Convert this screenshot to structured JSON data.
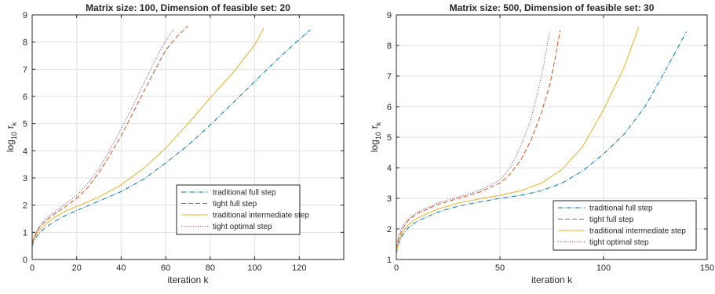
{
  "chart_data": [
    {
      "type": "line",
      "title": "Matrix size: 100, Dimension of feasible set: 20",
      "xlabel": "iteration k",
      "ylabel": {
        "base": "log",
        "sub": "10",
        "sym": "τ",
        "symsub": "k"
      },
      "xlim": [
        0,
        140
      ],
      "ylim": [
        0,
        9
      ],
      "xticks": [
        0,
        20,
        40,
        60,
        80,
        100,
        120
      ],
      "yticks": [
        0,
        1,
        2,
        3,
        4,
        5,
        6,
        7,
        8,
        9
      ],
      "grid": true,
      "legend_position": "lower-right",
      "series": [
        {
          "name": "traditional full step",
          "color": "#0072BD",
          "dash": "dashdot",
          "points": [
            [
              0,
              0.5
            ],
            [
              1,
              0.72
            ],
            [
              3,
              0.95
            ],
            [
              6,
              1.18
            ],
            [
              10,
              1.4
            ],
            [
              15,
              1.62
            ],
            [
              20,
              1.8
            ],
            [
              30,
              2.15
            ],
            [
              40,
              2.5
            ],
            [
              50,
              2.95
            ],
            [
              60,
              3.55
            ],
            [
              70,
              4.2
            ],
            [
              80,
              4.95
            ],
            [
              90,
              5.75
            ],
            [
              100,
              6.55
            ],
            [
              110,
              7.35
            ],
            [
              120,
              8.1
            ],
            [
              125,
              8.45
            ]
          ]
        },
        {
          "name": "tight full step",
          "color": "#D95319",
          "dash": "dashed",
          "points": [
            [
              0,
              0.6
            ],
            [
              1,
              0.85
            ],
            [
              3,
              1.15
            ],
            [
              6,
              1.42
            ],
            [
              10,
              1.68
            ],
            [
              15,
              1.95
            ],
            [
              20,
              2.25
            ],
            [
              25,
              2.65
            ],
            [
              30,
              3.2
            ],
            [
              35,
              3.85
            ],
            [
              40,
              4.55
            ],
            [
              45,
              5.35
            ],
            [
              50,
              6.15
            ],
            [
              55,
              6.95
            ],
            [
              60,
              7.7
            ],
            [
              65,
              8.2
            ],
            [
              70,
              8.6
            ]
          ]
        },
        {
          "name": "traditional intermediate step",
          "color": "#EDB120",
          "dash": "solid",
          "points": [
            [
              0,
              0.55
            ],
            [
              1,
              0.8
            ],
            [
              3,
              1.05
            ],
            [
              6,
              1.3
            ],
            [
              10,
              1.55
            ],
            [
              15,
              1.78
            ],
            [
              20,
              1.95
            ],
            [
              30,
              2.3
            ],
            [
              40,
              2.75
            ],
            [
              50,
              3.35
            ],
            [
              60,
              4.1
            ],
            [
              70,
              5.0
            ],
            [
              80,
              5.95
            ],
            [
              90,
              6.85
            ],
            [
              100,
              7.9
            ],
            [
              104,
              8.5
            ]
          ]
        },
        {
          "name": "tight optimal step",
          "color": "#7E2F8E",
          "dash": "dotted",
          "points": [
            [
              0,
              0.62
            ],
            [
              1,
              0.88
            ],
            [
              3,
              1.2
            ],
            [
              6,
              1.5
            ],
            [
              10,
              1.75
            ],
            [
              15,
              2.05
            ],
            [
              20,
              2.35
            ],
            [
              25,
              2.8
            ],
            [
              30,
              3.35
            ],
            [
              35,
              4.05
            ],
            [
              40,
              4.8
            ],
            [
              45,
              5.6
            ],
            [
              50,
              6.45
            ],
            [
              55,
              7.3
            ],
            [
              60,
              8.05
            ],
            [
              64,
              8.5
            ]
          ]
        }
      ]
    },
    {
      "type": "line",
      "title": "Matrix size: 500, Dimension of feasible set: 30",
      "xlabel": "iteration k",
      "ylabel": {
        "base": "log",
        "sub": "10",
        "sym": "τ",
        "symsub": "k"
      },
      "xlim": [
        0,
        150
      ],
      "ylim": [
        1,
        9
      ],
      "xticks": [
        0,
        50,
        100,
        150
      ],
      "yticks": [
        1,
        2,
        3,
        4,
        5,
        6,
        7,
        8,
        9
      ],
      "grid": true,
      "legend_position": "lower-right",
      "series": [
        {
          "name": "traditional full step",
          "color": "#0072BD",
          "dash": "dashdot",
          "points": [
            [
              0,
              1.2
            ],
            [
              1,
              1.5
            ],
            [
              3,
              1.8
            ],
            [
              6,
              2.05
            ],
            [
              10,
              2.25
            ],
            [
              20,
              2.55
            ],
            [
              30,
              2.75
            ],
            [
              40,
              2.88
            ],
            [
              50,
              3.0
            ],
            [
              60,
              3.1
            ],
            [
              70,
              3.25
            ],
            [
              80,
              3.5
            ],
            [
              90,
              3.9
            ],
            [
              100,
              4.45
            ],
            [
              110,
              5.1
            ],
            [
              120,
              6.0
            ],
            [
              130,
              7.2
            ],
            [
              140,
              8.45
            ]
          ]
        },
        {
          "name": "tight full step",
          "color": "#D95319",
          "dash": "dashed",
          "points": [
            [
              0,
              1.35
            ],
            [
              1,
              1.65
            ],
            [
              3,
              2.0
            ],
            [
              6,
              2.3
            ],
            [
              10,
              2.5
            ],
            [
              20,
              2.8
            ],
            [
              30,
              3.0
            ],
            [
              40,
              3.2
            ],
            [
              50,
              3.5
            ],
            [
              55,
              3.8
            ],
            [
              60,
              4.25
            ],
            [
              65,
              4.9
            ],
            [
              70,
              5.8
            ],
            [
              74,
              6.7
            ],
            [
              77,
              7.7
            ],
            [
              79,
              8.5
            ]
          ]
        },
        {
          "name": "traditional intermediate step",
          "color": "#EDB120",
          "dash": "solid",
          "points": [
            [
              0,
              1.25
            ],
            [
              1,
              1.55
            ],
            [
              3,
              1.9
            ],
            [
              6,
              2.15
            ],
            [
              10,
              2.35
            ],
            [
              20,
              2.65
            ],
            [
              30,
              2.85
            ],
            [
              40,
              2.98
            ],
            [
              50,
              3.1
            ],
            [
              60,
              3.25
            ],
            [
              70,
              3.5
            ],
            [
              80,
              3.95
            ],
            [
              90,
              4.7
            ],
            [
              100,
              5.9
            ],
            [
              110,
              7.3
            ],
            [
              117,
              8.6
            ]
          ]
        },
        {
          "name": "tight optimal step",
          "color": "#7E2F8E",
          "dash": "dotted",
          "points": [
            [
              0,
              1.4
            ],
            [
              1,
              1.75
            ],
            [
              3,
              2.1
            ],
            [
              6,
              2.35
            ],
            [
              10,
              2.55
            ],
            [
              20,
              2.85
            ],
            [
              30,
              3.05
            ],
            [
              40,
              3.25
            ],
            [
              50,
              3.6
            ],
            [
              55,
              4.0
            ],
            [
              60,
              4.7
            ],
            [
              65,
              5.6
            ],
            [
              68,
              6.4
            ],
            [
              71,
              7.3
            ],
            [
              73,
              8.1
            ],
            [
              74,
              8.45
            ]
          ]
        }
      ]
    }
  ]
}
